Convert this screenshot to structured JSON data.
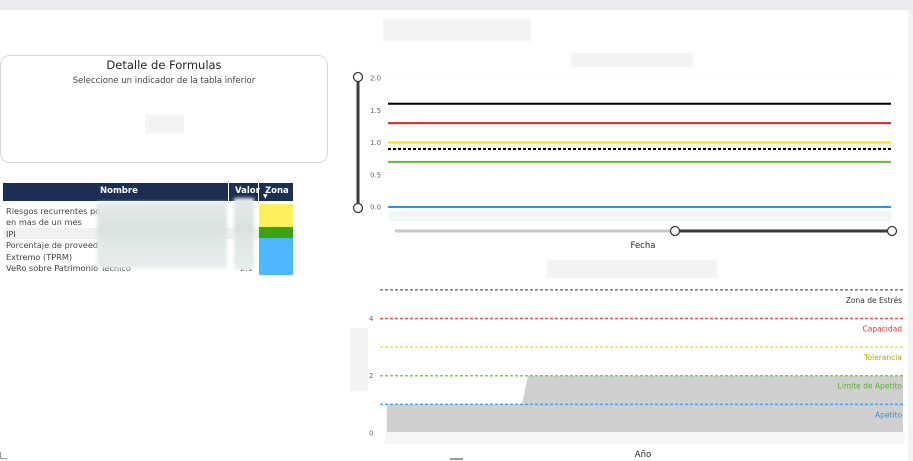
{
  "card": {
    "title": "Detalle de Formulas",
    "subtitle": "Seleccione un indicador de la tabla inferior"
  },
  "table": {
    "headers": {
      "name": "Nombre",
      "value": "Valor",
      "zone": "Zona"
    },
    "rows": [
      {
        "name": "Riesgos recurrentes po",
        "zone_color": "#fdee5c"
      },
      {
        "name": "en mas de un mes",
        "zone_color": "#fdee5c"
      },
      {
        "name": "IPI",
        "zone_color": "#3aa30f"
      },
      {
        "name": "Porcentaje de proveed",
        "zone_color": "#4db8ff"
      },
      {
        "name": "Extremo (TPRM)",
        "zone_color": "#4db8ff"
      },
      {
        "name": "VeRo sobre Patrimonio Técnico",
        "value": "2.1",
        "zone_color": "#4db8ff"
      }
    ]
  },
  "chart_data": [
    {
      "type": "line",
      "xlabel": "Fecha",
      "y_ticks": [
        "2.0",
        "1.5",
        "1.0",
        "0.5",
        "0.0"
      ],
      "ylim": [
        0,
        2
      ],
      "series": [
        {
          "value": 1.6,
          "color": "#000000",
          "style": "solid"
        },
        {
          "value": 1.3,
          "color": "#e02020",
          "style": "solid"
        },
        {
          "value": 1.0,
          "color": "#f5e400",
          "style": "solid"
        },
        {
          "value": 0.9,
          "color": "#000000",
          "style": "dotted"
        },
        {
          "value": 0.7,
          "color": "#5cbf2a",
          "style": "solid"
        },
        {
          "value": 0.0,
          "color": "#2196f3",
          "style": "solid"
        }
      ]
    },
    {
      "type": "area",
      "xlabel": "Año",
      "y_ticks": [
        "4",
        "2",
        "0"
      ],
      "ylim": [
        0,
        5.1
      ],
      "thresholds": [
        {
          "label": "Zona de Estrés",
          "value": 5,
          "color": "#777777"
        },
        {
          "label": "Capacidad",
          "value": 4,
          "color": "#f05050"
        },
        {
          "label": "Tolerancia",
          "value": 3,
          "color": "#f1e04a"
        },
        {
          "label": "Limite de Apetito",
          "value": 2,
          "color": "#7ccc5a"
        },
        {
          "label": "Apetito",
          "value": 1,
          "color": "#4da3f0"
        }
      ],
      "area": {
        "color": "#cfcfcf",
        "values_start": 1,
        "values_end": 2
      }
    }
  ]
}
